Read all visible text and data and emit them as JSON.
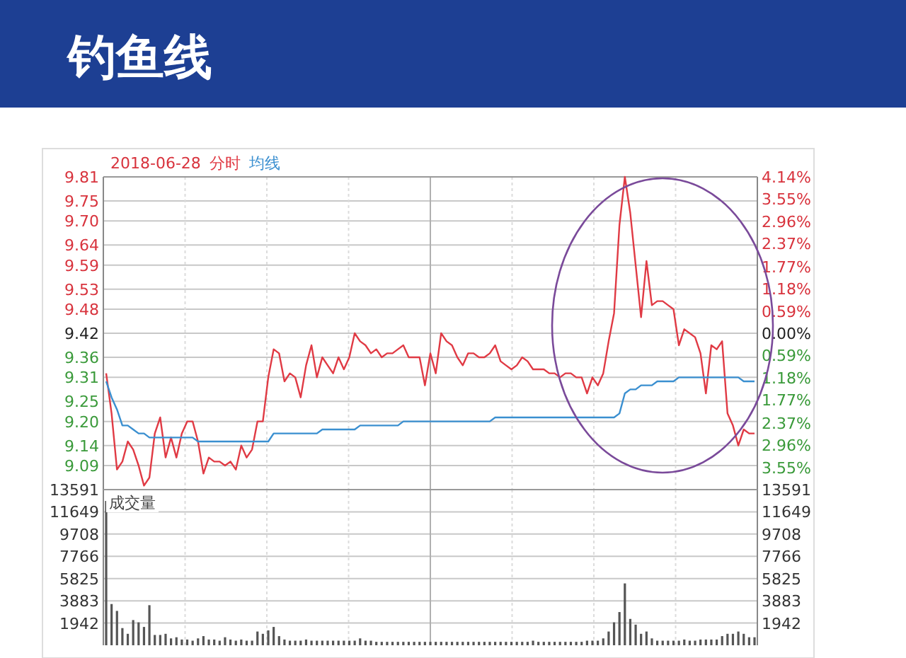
{
  "chart_data": [
    {
      "type": "line",
      "title": "钓鱼线",
      "subtitle": "2018-06-28",
      "grid": true,
      "tick_labels": "y",
      "categories": [
        null,
        null,
        null,
        null,
        null,
        null,
        null,
        null,
        null,
        null,
        null,
        null,
        null,
        null,
        null,
        null,
        null,
        null,
        null,
        null,
        null,
        null,
        null,
        null,
        null,
        null,
        null,
        null,
        null,
        null,
        null,
        null,
        null,
        null,
        null,
        null,
        null,
        null,
        null,
        null,
        null,
        null,
        null,
        null,
        null,
        null,
        null,
        null,
        null,
        null,
        null,
        null,
        null,
        null,
        null,
        null,
        null,
        null,
        null,
        null,
        null,
        null,
        null,
        null,
        null,
        null,
        null,
        null,
        null,
        null,
        null,
        null,
        null,
        null,
        null,
        null,
        null,
        null,
        null,
        null,
        null,
        null,
        null,
        null,
        null,
        null,
        null,
        null,
        null,
        null,
        null,
        null,
        null,
        null,
        null,
        null,
        null,
        null,
        null,
        null,
        null,
        null,
        null,
        null,
        null,
        null,
        null,
        null,
        null,
        null,
        null,
        null,
        null,
        null,
        null,
        null,
        null,
        null,
        null,
        null,
        null
      ],
      "ylim": [
        9.03,
        9.81
      ],
      "yticks": [
        9.81,
        9.75,
        {
          "value": 9.7,
          "label": "9.70"
        },
        9.64,
        9.59,
        9.53,
        9.48,
        9.42,
        9.36,
        9.31,
        9.25,
        {
          "value": 9.2,
          "label": "9.20"
        },
        9.14,
        9.09
      ],
      "y2lim": [
        -4.14,
        4.14
      ],
      "y2ticks": [
        {
          "value": 4.14,
          "label": "4.14%"
        },
        {
          "value": 3.55,
          "label": "3.55%"
        },
        {
          "value": 2.96,
          "label": "2.96%"
        },
        {
          "value": 2.37,
          "label": "2.37%"
        },
        {
          "value": 1.77,
          "label": "1.77%"
        },
        {
          "value": 1.18,
          "label": "1.18%"
        },
        {
          "value": 0.59,
          "label": "0.59%"
        },
        {
          "value": 0,
          "label": "0.00%"
        },
        {
          "value": -0.59,
          "label": "0.59%"
        },
        {
          "value": -1.18,
          "label": "1.18%"
        },
        {
          "value": -1.77,
          "label": "1.77%"
        },
        {
          "value": -2.37,
          "label": "2.37%"
        },
        {
          "value": -2.96,
          "label": "2.96%"
        },
        {
          "value": -3.55,
          "label": "3.55%"
        }
      ],
      "series": [
        {
          "name": "分时",
          "color": "#e03a44",
          "values": [
            9.32,
            9.22,
            9.08,
            9.1,
            9.15,
            9.13,
            9.09,
            9.04,
            9.06,
            9.17,
            9.21,
            9.11,
            9.16,
            9.11,
            9.17,
            9.2,
            9.2,
            9.15,
            9.07,
            9.11,
            9.1,
            9.1,
            9.09,
            9.1,
            9.08,
            9.14,
            9.11,
            9.13,
            9.2,
            9.2,
            9.31,
            9.38,
            9.37,
            9.3,
            9.32,
            9.31,
            9.26,
            9.34,
            9.39,
            9.31,
            9.36,
            9.34,
            9.32,
            9.36,
            9.33,
            9.36,
            9.42,
            9.4,
            9.39,
            9.37,
            9.38,
            9.36,
            9.37,
            9.37,
            9.38,
            9.39,
            9.36,
            9.36,
            9.36,
            9.29,
            9.37,
            9.32,
            9.42,
            9.4,
            9.39,
            9.36,
            9.34,
            9.37,
            9.37,
            9.36,
            9.36,
            9.37,
            9.39,
            9.35,
            9.34,
            9.33,
            9.34,
            9.36,
            9.35,
            9.33,
            9.33,
            9.33,
            9.32,
            9.32,
            9.31,
            9.32,
            9.32,
            9.31,
            9.31,
            9.27,
            9.31,
            9.29,
            9.32,
            9.4,
            9.47,
            9.69,
            9.81,
            9.72,
            9.59,
            9.46,
            9.6,
            9.49,
            9.5,
            9.5,
            9.49,
            9.48,
            9.39,
            9.43,
            9.42,
            9.41,
            9.37,
            9.27,
            9.39,
            9.38,
            9.4,
            9.22,
            9.19,
            9.14,
            9.18,
            9.17,
            9.17
          ]
        },
        {
          "name": "均线",
          "color": "#3a8fd0",
          "values": [
            9.3,
            9.26,
            9.23,
            9.19,
            9.19,
            9.18,
            9.17,
            9.17,
            9.16,
            9.16,
            9.16,
            9.16,
            9.16,
            9.16,
            9.16,
            9.16,
            9.16,
            9.15,
            9.15,
            9.15,
            9.15,
            9.15,
            9.15,
            9.15,
            9.15,
            9.15,
            9.15,
            9.15,
            9.15,
            9.15,
            9.15,
            9.17,
            9.17,
            9.17,
            9.17,
            9.17,
            9.17,
            9.17,
            9.17,
            9.17,
            9.18,
            9.18,
            9.18,
            9.18,
            9.18,
            9.18,
            9.18,
            9.19,
            9.19,
            9.19,
            9.19,
            9.19,
            9.19,
            9.19,
            9.19,
            9.2,
            9.2,
            9.2,
            9.2,
            9.2,
            9.2,
            9.2,
            9.2,
            9.2,
            9.2,
            9.2,
            9.2,
            9.2,
            9.2,
            9.2,
            9.2,
            9.2,
            9.21,
            9.21,
            9.21,
            9.21,
            9.21,
            9.21,
            9.21,
            9.21,
            9.21,
            9.21,
            9.21,
            9.21,
            9.21,
            9.21,
            9.21,
            9.21,
            9.21,
            9.21,
            9.21,
            9.21,
            9.21,
            9.21,
            9.21,
            9.22,
            9.27,
            9.28,
            9.28,
            9.29,
            9.29,
            9.29,
            9.3,
            9.3,
            9.3,
            9.3,
            9.31,
            9.31,
            9.31,
            9.31,
            9.31,
            9.31,
            9.31,
            9.31,
            9.31,
            9.31,
            9.31,
            9.31,
            9.3,
            9.3,
            9.3
          ]
        }
      ]
    },
    {
      "type": "bar",
      "title": "成交量",
      "color": "#555555",
      "grid": true,
      "tick_labels": "y",
      "categories": [
        null,
        null,
        null,
        null,
        null,
        null,
        null,
        null,
        null,
        null,
        null,
        null,
        null,
        null,
        null,
        null,
        null,
        null,
        null,
        null,
        null,
        null,
        null,
        null,
        null,
        null,
        null,
        null,
        null,
        null,
        null,
        null,
        null,
        null,
        null,
        null,
        null,
        null,
        null,
        null,
        null,
        null,
        null,
        null,
        null,
        null,
        null,
        null,
        null,
        null,
        null,
        null,
        null,
        null,
        null,
        null,
        null,
        null,
        null,
        null,
        null,
        null,
        null,
        null,
        null,
        null,
        null,
        null,
        null,
        null,
        null,
        null,
        null,
        null,
        null,
        null,
        null,
        null,
        null,
        null,
        null,
        null,
        null,
        null,
        null,
        null,
        null,
        null,
        null,
        null,
        null,
        null,
        null,
        null,
        null,
        null,
        null,
        null,
        null,
        null,
        null,
        null,
        null,
        null,
        null,
        null,
        null,
        null,
        null,
        null,
        null,
        null,
        null,
        null,
        null,
        null,
        null,
        null,
        null,
        null,
        null
      ],
      "ylim": [
        0,
        13591
      ],
      "yticks": [
        1942,
        3883,
        5825,
        7766,
        9708,
        11649,
        13591
      ],
      "y2lim": [
        0,
        13591
      ],
      "y2ticks": [
        1942,
        3883,
        5825,
        7766,
        9708,
        11649,
        13591
      ],
      "values": [
        12600,
        3600,
        3000,
        1500,
        1000,
        2200,
        2000,
        1600,
        3500,
        900,
        900,
        1000,
        600,
        700,
        500,
        500,
        400,
        600,
        800,
        500,
        500,
        400,
        700,
        500,
        400,
        500,
        400,
        400,
        1200,
        1000,
        1300,
        1600,
        800,
        500,
        400,
        400,
        400,
        500,
        400,
        400,
        400,
        400,
        400,
        400,
        400,
        400,
        400,
        600,
        400,
        400,
        300,
        300,
        300,
        300,
        300,
        300,
        300,
        300,
        300,
        300,
        300,
        300,
        300,
        300,
        300,
        300,
        300,
        300,
        300,
        300,
        300,
        300,
        300,
        300,
        300,
        300,
        300,
        300,
        300,
        400,
        300,
        300,
        300,
        300,
        300,
        300,
        300,
        300,
        300,
        400,
        400,
        400,
        600,
        1200,
        2000,
        2900,
        5400,
        2300,
        1800,
        1000,
        1200,
        600,
        400,
        400,
        400,
        400,
        400,
        500,
        400,
        400,
        500,
        500,
        500,
        500,
        800,
        1000,
        1000,
        1200,
        1000,
        700,
        700
      ]
    }
  ]
}
